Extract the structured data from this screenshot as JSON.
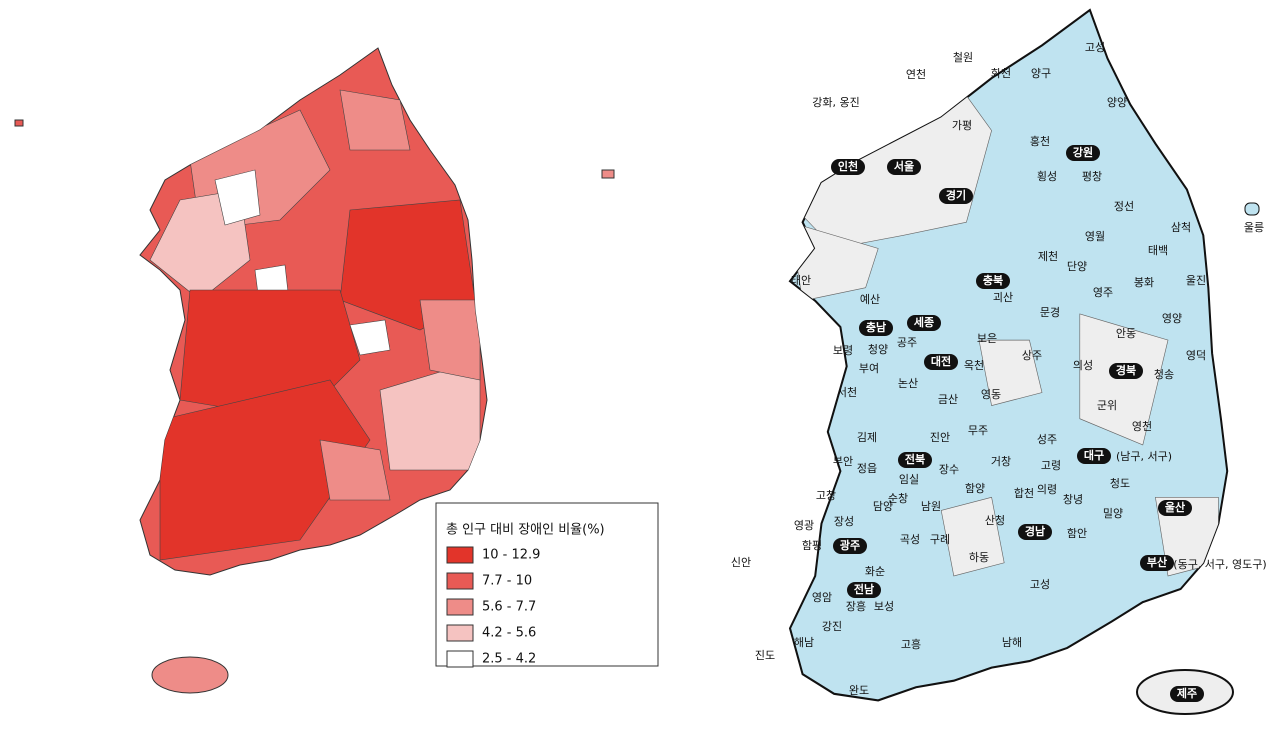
{
  "left_map": {
    "legend": {
      "title": "총 인구 대비 장애인 비율(%)",
      "items": [
        {
          "label": "10 - 12.9",
          "color": "#e2342a"
        },
        {
          "label": "7.7 - 10",
          "color": "#e85a55"
        },
        {
          "label": "5.6 - 7.7",
          "color": "#ee8c88"
        },
        {
          "label": "4.2 - 5.6",
          "color": "#f5c3c1"
        },
        {
          "label": "2.5 - 4.2",
          "color": "#ffffff"
        }
      ]
    }
  },
  "right_map": {
    "places": [
      "고성",
      "철원",
      "연천",
      "화천",
      "양구",
      "강화, 옹진",
      "양양",
      "가평",
      "홍천",
      "횡성",
      "평창",
      "정선",
      "삼척",
      "영월",
      "태백",
      "울릉",
      "제천",
      "단양",
      "태안",
      "괴산",
      "영주",
      "봉화",
      "울진",
      "예산",
      "문경",
      "영양",
      "공주",
      "보은",
      "안동",
      "청양",
      "보령",
      "영덕",
      "옥천",
      "부여",
      "상주",
      "의성",
      "청송",
      "서천",
      "논산",
      "영동",
      "금산",
      "군위",
      "무주",
      "김제",
      "진안",
      "영천",
      "성주",
      "부안",
      "정읍",
      "임실",
      "장수",
      "거창",
      "고령",
      "(남구, 서구)",
      "고창",
      "순창",
      "함양",
      "합천",
      "창녕",
      "청도",
      "영광",
      "장성",
      "담양",
      "남원",
      "의령",
      "함평",
      "곡성",
      "구례",
      "산청",
      "함안",
      "밀양",
      "신안",
      "화순",
      "하동",
      "(동구, 서구, 영도구)",
      "영암",
      "보성",
      "장흥",
      "고성",
      "강진",
      "해남",
      "고흥",
      "남해",
      "진도",
      "완도"
    ],
    "regions": [
      "인천",
      "서울",
      "경기",
      "강원",
      "충북",
      "세종",
      "충남",
      "대전",
      "경북",
      "전북",
      "대구",
      "울산",
      "경남",
      "광주",
      "전남",
      "부산",
      "제주"
    ]
  }
}
